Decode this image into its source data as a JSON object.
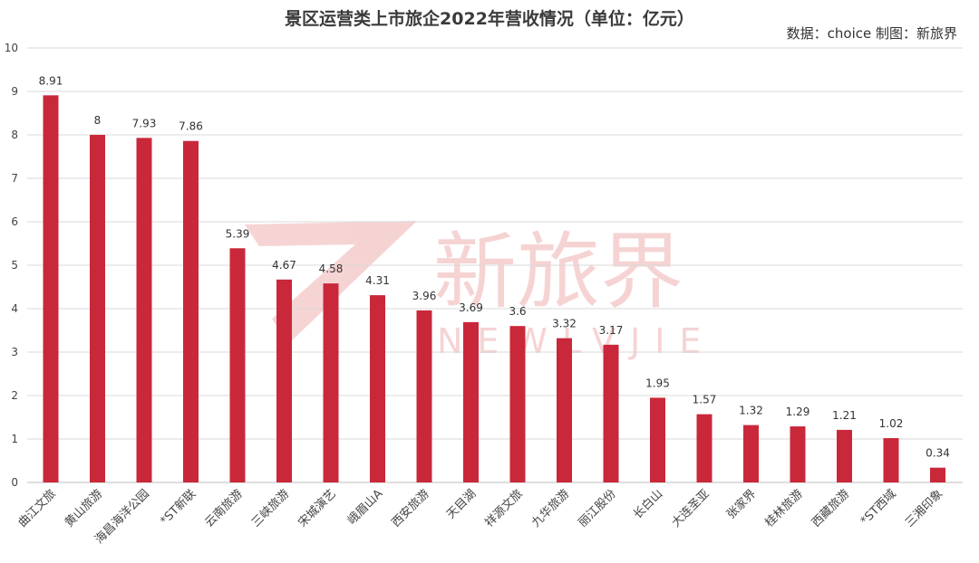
{
  "chart_data": {
    "type": "bar",
    "title": "景区运营类上市旅企2022年营收情况（单位：亿元）",
    "source": "数据：choice 制图：新旅界",
    "ylim": [
      0,
      10
    ],
    "yticks": [
      0,
      1,
      2,
      3,
      4,
      5,
      6,
      7,
      8,
      9,
      10
    ],
    "grid": true,
    "bar_color": "#c9283a",
    "categories": [
      "曲江文旅",
      "黄山旅游",
      "海昌海洋公园",
      "*ST新联",
      "云南旅游",
      "三峡旅游",
      "宋城演艺",
      "峨眉山A",
      "西安旅游",
      "天目湖",
      "祥源文旅",
      "九华旅游",
      "丽江股份",
      "长白山",
      "大连圣亚",
      "张家界",
      "桂林旅游",
      "西藏旅游",
      "*ST西域",
      "三湘印象"
    ],
    "values": [
      8.91,
      8,
      7.93,
      7.86,
      5.39,
      4.67,
      4.58,
      4.31,
      3.96,
      3.69,
      3.6,
      3.32,
      3.17,
      1.95,
      1.57,
      1.32,
      1.29,
      1.21,
      1.02,
      0.34
    ],
    "value_labels": [
      "8.91",
      "8",
      "7.93",
      "7.86",
      "5.39",
      "4.67",
      "4.58",
      "4.31",
      "3.96",
      "3.69",
      "3.6",
      "3.32",
      "3.17",
      "1.95",
      "1.57",
      "1.32",
      "1.29",
      "1.21",
      "1.02",
      "0.34"
    ]
  },
  "watermark": {
    "brand": "新旅界",
    "latin": "NEWLVJIE",
    "color": "#e8a0a0"
  }
}
